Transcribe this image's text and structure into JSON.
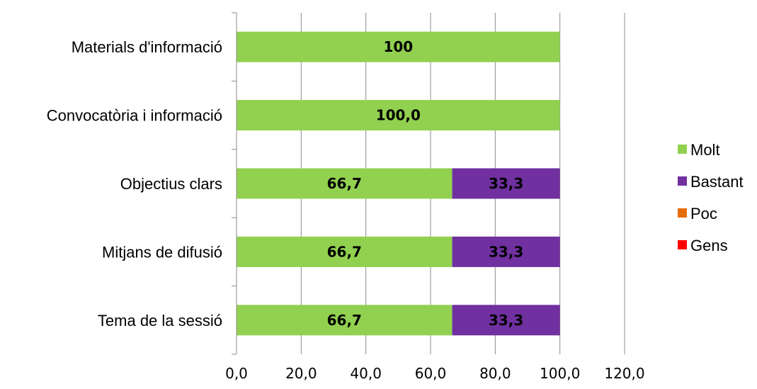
{
  "chart_data": {
    "type": "bar",
    "orientation": "horizontal",
    "stacked": true,
    "categories": [
      "Materials d'informació",
      "Convocatòria i informació",
      "Objectius clars",
      "Mitjans de difusió",
      "Tema de la sessió"
    ],
    "series": [
      {
        "name": "Molt",
        "color": "#92d050",
        "values": [
          100,
          100,
          66.7,
          66.7,
          66.7
        ],
        "labels": [
          "100",
          "100,0",
          "66,7",
          "66,7",
          "66,7"
        ]
      },
      {
        "name": "Bastant",
        "color": "#7030a0",
        "values": [
          0,
          0,
          33.3,
          33.3,
          33.3
        ],
        "labels": [
          "",
          "",
          "33,3",
          "33,3",
          "33,3"
        ]
      },
      {
        "name": "Poc",
        "color": "#e46c0a",
        "values": [
          0,
          0,
          0,
          0,
          0
        ],
        "labels": [
          "",
          "",
          "",
          "",
          ""
        ]
      },
      {
        "name": "Gens",
        "color": "#ff0000",
        "values": [
          0,
          0,
          0,
          0,
          0
        ],
        "labels": [
          "",
          "",
          "",
          "",
          ""
        ]
      }
    ],
    "xlim": [
      0,
      120
    ],
    "x_ticks": [
      0,
      20,
      40,
      60,
      80,
      100,
      120
    ],
    "x_tick_labels": [
      "0,0",
      "20,0",
      "40,0",
      "60,0",
      "80,0",
      "100,0",
      "120,0"
    ],
    "grid": "vertical",
    "legend_position": "right",
    "title": "",
    "xlabel": "",
    "ylabel": ""
  }
}
